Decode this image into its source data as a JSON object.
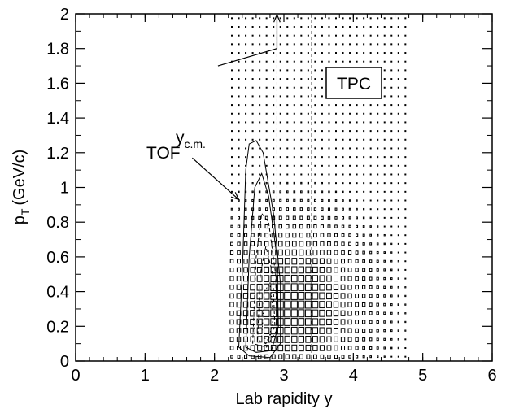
{
  "chart_data": {
    "type": "heatmap",
    "xlabel": "Lab rapidity y",
    "ylabel_main": "p",
    "ylabel_sub": "T",
    "ylabel_unit": "(GeV/c)",
    "xlim": [
      0,
      6
    ],
    "ylim": [
      0,
      2
    ],
    "x_ticks": [
      0,
      1,
      2,
      3,
      4,
      5,
      6
    ],
    "y_ticks": [
      0,
      0.2,
      0.4,
      0.6,
      0.8,
      1,
      1.2,
      1.4,
      1.6,
      1.8,
      2
    ],
    "y_tick_labels": [
      "0",
      "0.2",
      "0.4",
      "0.6",
      "0.8",
      "1",
      "1.2",
      "1.4",
      "1.6",
      "1.8",
      "2"
    ],
    "x_tick_labels": [
      "0",
      "1",
      "2",
      "3",
      "4",
      "5",
      "6"
    ],
    "grid": false,
    "annotations": {
      "tpc_label": "TPC",
      "tof_label": "TOF",
      "ycm_main": "y",
      "ycm_sub": "c.m."
    },
    "reference_lines": {
      "ycm": 2.9,
      "second": 3.4
    },
    "tpc_acceptance": {
      "y_range": [
        2.2,
        4.8
      ],
      "pt_range": [
        0,
        2
      ],
      "bin_y": 0.1,
      "bin_pt": 0.05
    },
    "tof_contours": [
      {
        "style": "solid",
        "points": [
          [
            2.35,
            0.08
          ],
          [
            2.4,
            0.5
          ],
          [
            2.45,
            1.1
          ],
          [
            2.5,
            1.25
          ],
          [
            2.6,
            1.27
          ],
          [
            2.7,
            1.2
          ],
          [
            2.85,
            0.85
          ],
          [
            2.95,
            0.45
          ],
          [
            2.95,
            0.1
          ],
          [
            2.8,
            0.02
          ],
          [
            2.5,
            0.03
          ],
          [
            2.35,
            0.08
          ]
        ]
      },
      {
        "style": "solid",
        "points": [
          [
            2.45,
            0.08
          ],
          [
            2.5,
            0.6
          ],
          [
            2.58,
            1.0
          ],
          [
            2.68,
            1.08
          ],
          [
            2.78,
            0.95
          ],
          [
            2.9,
            0.6
          ],
          [
            2.92,
            0.2
          ],
          [
            2.82,
            0.06
          ],
          [
            2.6,
            0.05
          ],
          [
            2.45,
            0.08
          ]
        ]
      },
      {
        "style": "dashed",
        "points": [
          [
            2.55,
            0.1
          ],
          [
            2.6,
            0.6
          ],
          [
            2.68,
            0.85
          ],
          [
            2.78,
            0.8
          ],
          [
            2.88,
            0.5
          ],
          [
            2.9,
            0.18
          ],
          [
            2.75,
            0.08
          ],
          [
            2.55,
            0.1
          ]
        ]
      },
      {
        "style": "dashed",
        "points": [
          [
            2.62,
            0.12
          ],
          [
            2.66,
            0.5
          ],
          [
            2.74,
            0.66
          ],
          [
            2.84,
            0.5
          ],
          [
            2.87,
            0.2
          ],
          [
            2.74,
            0.1
          ],
          [
            2.62,
            0.12
          ]
        ]
      },
      {
        "style": "dotted",
        "points": [
          [
            2.68,
            0.14
          ],
          [
            2.72,
            0.4
          ],
          [
            2.8,
            0.45
          ],
          [
            2.85,
            0.25
          ],
          [
            2.78,
            0.12
          ],
          [
            2.68,
            0.14
          ]
        ]
      }
    ],
    "annotation_arrows": {
      "tof_from": [
        1.68,
        1.17
      ],
      "tof_to": [
        2.35,
        0.93
      ],
      "ycm_from": [
        2.05,
        1.7
      ],
      "ycm_to": [
        2.9,
        1.8
      ]
    }
  }
}
